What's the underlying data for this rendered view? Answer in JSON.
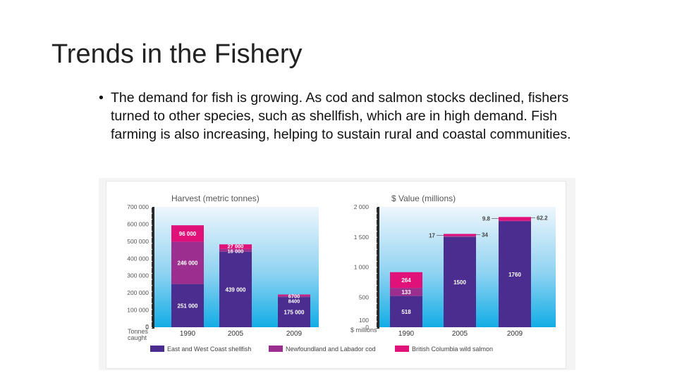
{
  "slide": {
    "title": "Trends in the Fishery",
    "bullet": "The demand for fish is growing. As cod and salmon stocks declined, fishers turned to other species, such as shellfish, which are in high demand. Fish farming is also increasing, helping to sustain rural and coastal communities."
  },
  "colors": {
    "shellfish": "#4a2d8f",
    "cod": "#9b2e8e",
    "salmon": "#e0127a",
    "panel_top": "#e9f3fb",
    "panel_bottom": "#16b0e6"
  },
  "chart_data": [
    {
      "type": "bar",
      "stacked": true,
      "title": "Harvest (metric tonnes)",
      "xlabel": "Tonnes caught",
      "categories": [
        "1990",
        "2005",
        "2009"
      ],
      "ylim": [
        0,
        700000
      ],
      "yticks": [
        "0",
        "100 000",
        "200 000",
        "300 000",
        "400 000",
        "500 000",
        "600 000",
        "700 000"
      ],
      "series": [
        {
          "name": "East and West Coast shellfish",
          "values": [
            251000,
            439000,
            175000
          ],
          "labels": [
            "251 000",
            "439 000",
            "175 000"
          ]
        },
        {
          "name": "Newfoundland and Labador cod",
          "values": [
            246000,
            16000,
            8400
          ],
          "labels": [
            "246 000",
            "16 000",
            "8400"
          ]
        },
        {
          "name": "British Columbia wild salmon",
          "values": [
            96000,
            27000,
            6700
          ],
          "labels": [
            "96 000",
            "27 000",
            "6700"
          ]
        }
      ]
    },
    {
      "type": "bar",
      "stacked": true,
      "title": "$ Value (millions)",
      "xlabel": "$ millions",
      "categories": [
        "1990",
        "2005",
        "2009"
      ],
      "ylim": [
        0,
        2000
      ],
      "yticks": [
        "0",
        "100",
        "500",
        "1 000",
        "1 500",
        "2 000"
      ],
      "series": [
        {
          "name": "East and West Coast shellfish",
          "values": [
            518,
            1500,
            1760
          ],
          "labels": [
            "518",
            "1500",
            "1760"
          ]
        },
        {
          "name": "Newfoundland and Labador cod",
          "values": [
            133,
            17,
            9.8
          ],
          "labels": [
            "133",
            "17",
            "9.8"
          ]
        },
        {
          "name": "British Columbia wild salmon",
          "values": [
            264,
            34,
            62.2
          ],
          "labels": [
            "264",
            "34",
            "62.2"
          ]
        }
      ]
    }
  ],
  "legend": [
    {
      "label": "East and West Coast shellfish"
    },
    {
      "label": "Newfoundland and Labador cod"
    },
    {
      "label": "British Columbia wild salmon"
    }
  ]
}
